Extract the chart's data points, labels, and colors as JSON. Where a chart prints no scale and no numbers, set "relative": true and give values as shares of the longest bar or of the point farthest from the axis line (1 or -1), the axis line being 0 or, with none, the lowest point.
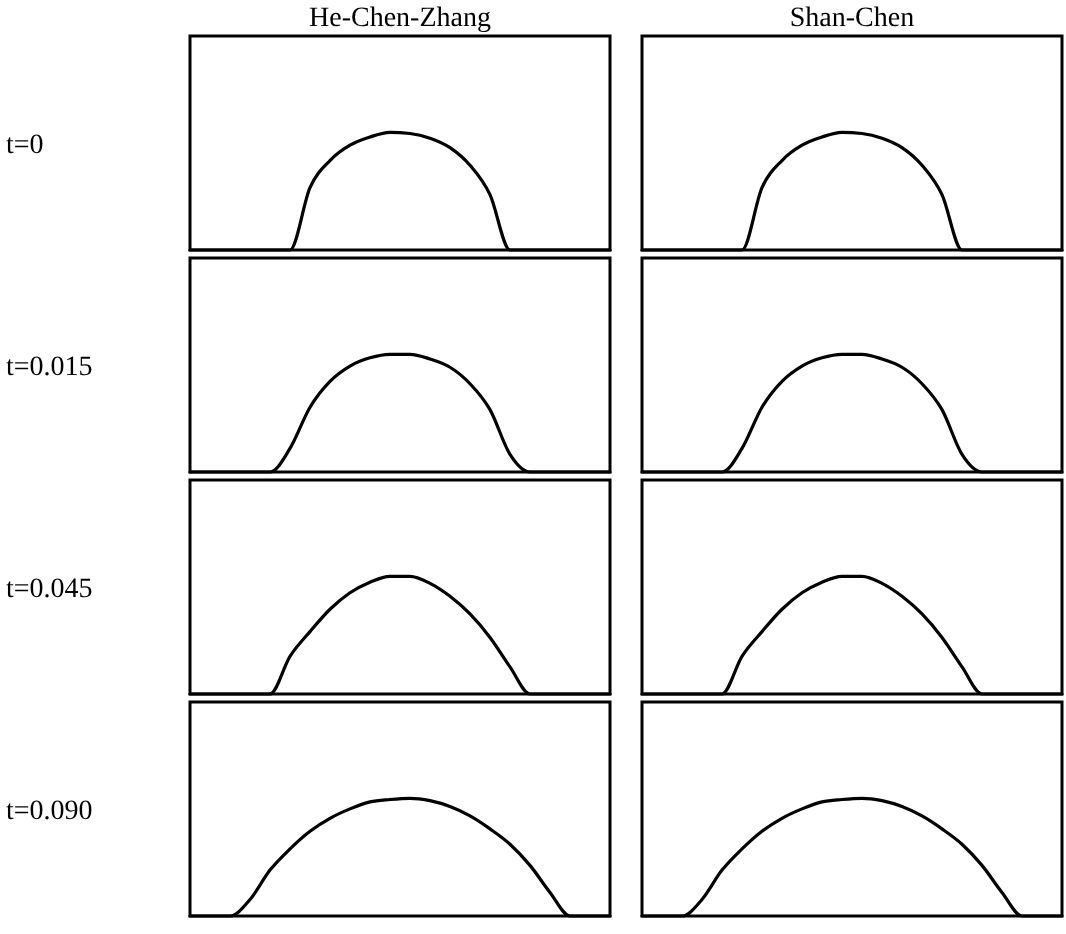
{
  "chart_data": [
    {
      "type": "line",
      "relative": true,
      "title": "He-Chen-Zhang",
      "ylabel": "t=0",
      "categories": [
        null,
        null,
        null,
        null,
        null,
        null,
        null,
        null,
        null,
        null,
        null,
        null,
        null,
        null,
        null,
        null,
        null,
        null,
        null,
        null,
        null,
        null
      ],
      "series": [
        {
          "color": "#000000",
          "values": [
            0,
            0,
            0,
            0,
            0,
            0,
            0.53,
            0.76,
            0.89,
            0.96,
            1,
            0.99,
            0.95,
            0.87,
            0.72,
            0.47,
            0,
            0,
            0,
            0,
            0,
            0
          ]
        }
      ]
    },
    {
      "type": "line",
      "relative": true,
      "title": "Shan-Chen",
      "categories": [
        null,
        null,
        null,
        null,
        null,
        null,
        null,
        null,
        null,
        null,
        null,
        null,
        null,
        null,
        null,
        null,
        null,
        null,
        null,
        null,
        null,
        null
      ],
      "series": [
        {
          "color": "#000000",
          "values": [
            0,
            0,
            0,
            0,
            0,
            0,
            0.53,
            0.76,
            0.89,
            0.96,
            1,
            0.99,
            0.95,
            0.87,
            0.72,
            0.47,
            0,
            0,
            0,
            0,
            0,
            0
          ]
        }
      ]
    },
    {
      "type": "line",
      "relative": true,
      "ylabel": "t=0.015",
      "categories": [
        null,
        null,
        null,
        null,
        null,
        null,
        null,
        null,
        null,
        null,
        null,
        null,
        null,
        null,
        null,
        null,
        null,
        null,
        null,
        null,
        null,
        null
      ],
      "series": [
        {
          "color": "#000000",
          "values": [
            0,
            0,
            0,
            0,
            0,
            0.2,
            0.55,
            0.77,
            0.9,
            0.97,
            1,
            1,
            0.96,
            0.89,
            0.75,
            0.53,
            0.15,
            0,
            0,
            0,
            0,
            0
          ]
        }
      ]
    },
    {
      "type": "line",
      "relative": true,
      "categories": [
        null,
        null,
        null,
        null,
        null,
        null,
        null,
        null,
        null,
        null,
        null,
        null,
        null,
        null,
        null,
        null,
        null,
        null,
        null,
        null,
        null,
        null
      ],
      "series": [
        {
          "color": "#000000",
          "values": [
            0,
            0,
            0,
            0,
            0,
            0.2,
            0.55,
            0.77,
            0.9,
            0.97,
            1,
            1,
            0.96,
            0.89,
            0.75,
            0.53,
            0.15,
            0,
            0,
            0,
            0,
            0
          ]
        }
      ]
    },
    {
      "type": "line",
      "relative": true,
      "ylabel": "t=0.045",
      "categories": [
        null,
        null,
        null,
        null,
        null,
        null,
        null,
        null,
        null,
        null,
        null,
        null,
        null,
        null,
        null,
        null,
        null,
        null,
        null,
        null,
        null,
        null
      ],
      "series": [
        {
          "color": "#000000",
          "values": [
            0,
            0,
            0,
            0,
            0,
            0.32,
            0.53,
            0.72,
            0.86,
            0.95,
            1,
            1,
            0.94,
            0.83,
            0.68,
            0.48,
            0.23,
            0,
            0,
            0,
            0,
            0
          ]
        }
      ]
    },
    {
      "type": "line",
      "relative": true,
      "categories": [
        null,
        null,
        null,
        null,
        null,
        null,
        null,
        null,
        null,
        null,
        null,
        null,
        null,
        null,
        null,
        null,
        null,
        null,
        null,
        null,
        null,
        null
      ],
      "series": [
        {
          "color": "#000000",
          "values": [
            0,
            0,
            0,
            0,
            0,
            0.32,
            0.53,
            0.72,
            0.86,
            0.95,
            1,
            1,
            0.94,
            0.83,
            0.68,
            0.48,
            0.23,
            0,
            0,
            0,
            0,
            0
          ]
        }
      ]
    },
    {
      "type": "line",
      "relative": true,
      "ylabel": "t=0.090",
      "categories": [
        null,
        null,
        null,
        null,
        null,
        null,
        null,
        null,
        null,
        null,
        null,
        null,
        null,
        null,
        null,
        null,
        null,
        null,
        null,
        null,
        null,
        null
      ],
      "series": [
        {
          "color": "#000000",
          "values": [
            0,
            0,
            0,
            0.14,
            0.39,
            0.57,
            0.72,
            0.83,
            0.91,
            0.97,
            0.99,
            1,
            0.98,
            0.93,
            0.85,
            0.74,
            0.61,
            0.43,
            0.2,
            0,
            0,
            0
          ]
        }
      ]
    },
    {
      "type": "line",
      "relative": true,
      "categories": [
        null,
        null,
        null,
        null,
        null,
        null,
        null,
        null,
        null,
        null,
        null,
        null,
        null,
        null,
        null,
        null,
        null,
        null,
        null,
        null,
        null,
        null
      ],
      "series": [
        {
          "color": "#000000",
          "values": [
            0,
            0,
            0,
            0.14,
            0.39,
            0.57,
            0.72,
            0.83,
            0.91,
            0.97,
            0.99,
            1,
            0.98,
            0.93,
            0.85,
            0.74,
            0.61,
            0.43,
            0.2,
            0,
            0,
            0
          ]
        }
      ]
    }
  ]
}
